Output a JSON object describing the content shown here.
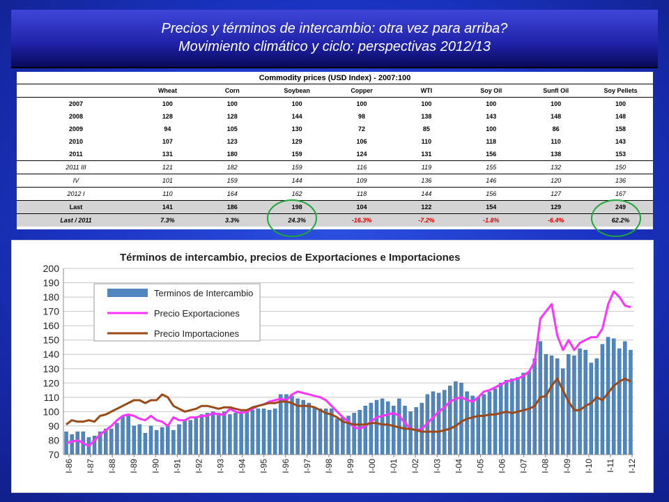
{
  "slide": {
    "title_line1": "Precios y términos de intercambio: otra vez para arriba?",
    "title_line2": "Movimiento climático y ciclo: perspectivas 2012/13"
  },
  "table": {
    "caption": "Commodity prices (USD Index) - 2007:100",
    "headers": [
      "Wheat",
      "Corn",
      "Soybean",
      "Copper",
      "WTI",
      "Soy  Oil",
      "Sunfl Oil",
      "Soy Pellets"
    ],
    "rows": [
      {
        "label": "2007",
        "values": [
          "100",
          "100",
          "100",
          "100",
          "100",
          "100",
          "100",
          "100"
        ]
      },
      {
        "label": "2008",
        "values": [
          "128",
          "128",
          "144",
          "98",
          "138",
          "143",
          "148",
          "148"
        ]
      },
      {
        "label": "2009",
        "values": [
          "94",
          "105",
          "130",
          "72",
          "85",
          "100",
          "86",
          "158"
        ]
      },
      {
        "label": "2010",
        "values": [
          "107",
          "123",
          "129",
          "106",
          "110",
          "118",
          "110",
          "143"
        ]
      },
      {
        "label": "2011",
        "values": [
          "131",
          "180",
          "159",
          "124",
          "131",
          "156",
          "138",
          "153"
        ]
      }
    ],
    "quarters": [
      {
        "label": "2011 III",
        "values": [
          "121",
          "182",
          "159",
          "116",
          "119",
          "155",
          "132",
          "150"
        ]
      },
      {
        "label": "IV",
        "values": [
          "101",
          "159",
          "144",
          "109",
          "136",
          "146",
          "120",
          "136"
        ]
      },
      {
        "label": "2012 I",
        "values": [
          "110",
          "164",
          "162",
          "118",
          "144",
          "156",
          "127",
          "167"
        ]
      }
    ],
    "last": {
      "label": "Last",
      "values": [
        "141",
        "186",
        "198",
        "104",
        "122",
        "154",
        "129",
        "249"
      ]
    },
    "last_vs": {
      "label": "Last / 2011",
      "values": [
        "7.3%",
        "3.3%",
        "24.3%",
        "-16.3%",
        "-7.2%",
        "-1.8%",
        "-6.4%",
        "62.2%"
      ]
    },
    "negative_color": "#e00000",
    "highlight_color": "#1da53b"
  },
  "chart_data": {
    "type": "bar+line",
    "title": "Términos de intercambio, precios de Exportaciones e Importaciones",
    "ylim": [
      70,
      200
    ],
    "yticks": [
      70,
      80,
      90,
      100,
      110,
      120,
      130,
      140,
      150,
      160,
      170,
      180,
      190,
      200
    ],
    "xlabels": [
      "I-86",
      "I-87",
      "I-88",
      "I-89",
      "I-90",
      "I-91",
      "I-92",
      "I-93",
      "I-94",
      "I-95",
      "I-96",
      "I-97",
      "I-98",
      "I-99",
      "I-00",
      "I-01",
      "I-02",
      "I-03",
      "I-04",
      "I-05",
      "I-06",
      "I-07",
      "I-08",
      "I-09",
      "I-10",
      "I-11",
      "I-12"
    ],
    "grid": true,
    "legend": "top-left",
    "series": [
      {
        "name": "Terminos de Intercambio",
        "kind": "bar",
        "color": "#4f86bd",
        "values": [
          86,
          84,
          86,
          86,
          82,
          83,
          86,
          88,
          88,
          92,
          97,
          97,
          90,
          91,
          85,
          90,
          87,
          89,
          90,
          87,
          91,
          94,
          94,
          96,
          98,
          99,
          100,
          99,
          100,
          98,
          99,
          100,
          101,
          101,
          102,
          102,
          101,
          102,
          112,
          112,
          111,
          109,
          108,
          106,
          103,
          102,
          102,
          102,
          95,
          96,
          97,
          99,
          101,
          104,
          106,
          108,
          109,
          107,
          104,
          109,
          104,
          100,
          103,
          106,
          112,
          114,
          113,
          115,
          118,
          121,
          120,
          114,
          111,
          110,
          112,
          114,
          116,
          120,
          122,
          123,
          124,
          127,
          128,
          137,
          149,
          140,
          139,
          137,
          130,
          140,
          139,
          144,
          143,
          134,
          137,
          147,
          152,
          151,
          144,
          149,
          143
        ]
      },
      {
        "name": "Precio Exportaciones",
        "kind": "line",
        "color": "#ff33ff",
        "values": [
          78,
          79,
          80,
          78,
          76,
          80,
          84,
          87,
          90,
          94,
          97,
          98,
          97,
          95,
          94,
          97,
          94,
          93,
          90,
          96,
          94,
          94,
          96,
          96,
          97,
          97,
          99,
          98,
          98,
          102,
          100,
          99,
          100,
          102,
          104,
          105,
          107,
          108,
          109,
          108,
          112,
          114,
          113,
          112,
          111,
          110,
          108,
          104,
          100,
          96,
          93,
          89,
          88,
          90,
          93,
          96,
          97,
          98,
          99,
          97,
          92,
          88,
          87,
          88,
          92,
          96,
          100,
          103,
          107,
          109,
          110,
          108,
          107,
          110,
          114,
          115,
          117,
          119,
          121,
          122,
          123,
          125,
          128,
          135,
          165,
          170,
          175,
          153,
          143,
          150,
          143,
          148,
          150,
          152,
          152,
          158,
          175,
          184,
          180,
          174,
          173
        ]
      },
      {
        "name": "Precio Importaciones",
        "kind": "line",
        "color": "#9b4a17",
        "values": [
          91,
          94,
          93,
          93,
          94,
          93,
          97,
          98,
          100,
          102,
          104,
          106,
          108,
          108,
          106,
          108,
          108,
          112,
          110,
          104,
          102,
          100,
          101,
          102,
          104,
          104,
          103,
          102,
          103,
          103,
          102,
          101,
          101,
          103,
          104,
          105,
          106,
          106,
          107,
          107,
          106,
          104,
          104,
          104,
          103,
          101,
          99,
          98,
          96,
          93,
          92,
          91,
          91,
          91,
          92,
          92,
          91,
          91,
          90,
          89,
          88,
          88,
          87,
          86,
          86,
          86,
          86,
          87,
          88,
          90,
          93,
          95,
          96,
          97,
          97,
          98,
          98,
          99,
          100,
          99,
          100,
          101,
          102,
          104,
          110,
          111,
          118,
          123,
          115,
          107,
          101,
          101,
          104,
          106,
          110,
          108,
          113,
          118,
          121,
          123,
          121
        ]
      }
    ]
  }
}
